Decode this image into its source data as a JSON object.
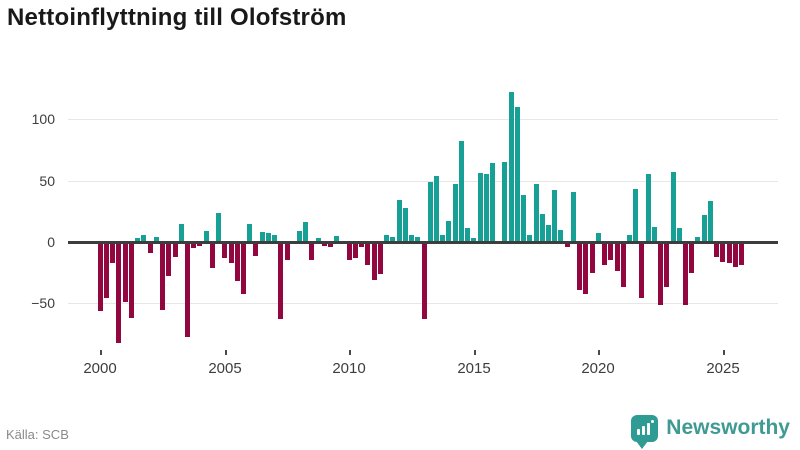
{
  "title": "Nettoinflyttning till Olofström",
  "source": "Källa: SCB",
  "branding": {
    "name": "Newsworthy"
  },
  "colors": {
    "positive_bar": "#17a096",
    "negative_bar": "#92073f",
    "grid": "#e7e7e7",
    "zero_line": "#3d3d3d",
    "title_text": "#191919",
    "axis_text": "#3d3d3d",
    "source_text": "#8a8a8a",
    "brand_teal": "#3f9a93"
  },
  "chart_data": {
    "type": "bar",
    "title": "Nettoinflyttning till Olofström",
    "frequency": "quarterly",
    "start_period": "2000 Q1",
    "end_period": "2025 Q4",
    "xlabel": "",
    "ylabel": "",
    "y_ticks": [
      100,
      50,
      0,
      -50
    ],
    "ylim": [
      -97,
      135
    ],
    "grid": "horizontal",
    "x_tick_years": [
      2000,
      2005,
      2010,
      2015,
      2020,
      2025
    ],
    "x_tick_labels": [
      "2000",
      "2005",
      "2010",
      "2015",
      "2020",
      "2025"
    ],
    "values": [
      -56,
      -46,
      -17,
      -82,
      -49,
      -62,
      3,
      6,
      -9,
      4,
      -55,
      -28,
      -12,
      15,
      -77,
      -5,
      -3,
      9,
      -21,
      24,
      -13,
      -17,
      -32,
      -42,
      15,
      -11,
      8,
      7,
      6,
      -63,
      -15,
      0,
      9,
      16,
      -15,
      3,
      -3,
      -4,
      5,
      0,
      -15,
      -13,
      -4,
      -19,
      -31,
      -26,
      6,
      4,
      34,
      28,
      6,
      4,
      -63,
      49,
      54,
      6,
      17,
      47,
      82,
      11,
      3,
      56,
      55,
      64,
      0,
      65,
      122,
      110,
      38,
      6,
      47,
      23,
      14,
      42,
      10,
      -4,
      41,
      -39,
      -42,
      -25,
      7,
      -19,
      -15,
      -24,
      -37,
      6,
      43,
      -46,
      55,
      12,
      -51,
      -37,
      57,
      11,
      -51,
      -25,
      4,
      22,
      33,
      -12,
      -16,
      -17,
      -20,
      -19
    ]
  }
}
